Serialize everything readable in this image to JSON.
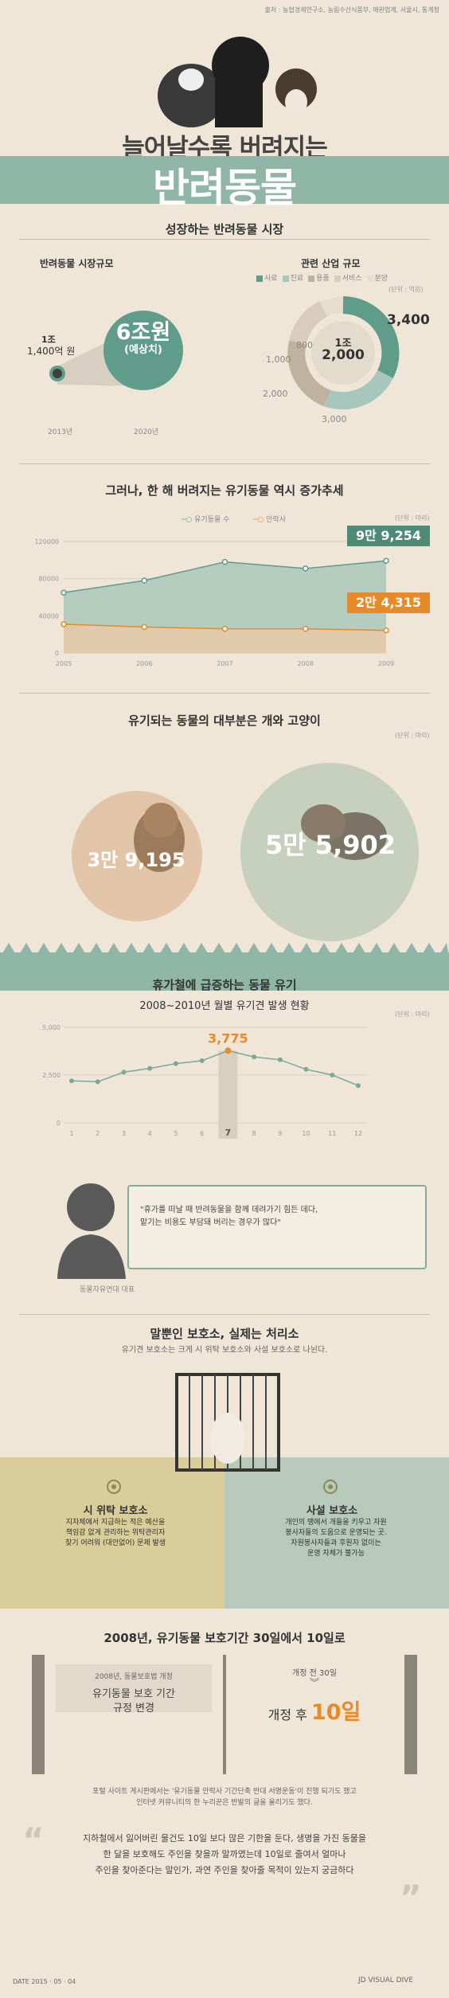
{
  "header": {
    "source": "출처 : 농협경제연구소, 농림수산식품부, 애완업계, 서울시, 통계청",
    "title": "늘어날수록 버려지는",
    "subtitle": "반려동물"
  },
  "market": {
    "section_title": "성장하는 반려동물 시장",
    "left_title": "반려동물 시장규모",
    "value_2013_top": "1조",
    "value_2013": "1,400억 원",
    "value_2020": "6조원",
    "value_2020_note": "(예상치)",
    "year_2013": "2013년",
    "year_2020": "2020년",
    "right_title": "관련 산업 규모",
    "unit": "(단위 : 억원)",
    "legend": [
      "사료",
      "진료",
      "용품",
      "서비스",
      "분양"
    ],
    "legend_colors": [
      "#5f9d8a",
      "#a7c7bd",
      "#bfb29f",
      "#d8cdbd",
      "#e8dfd2"
    ],
    "donut_center_top": "1조",
    "donut_center": "2,000",
    "donut_values": [
      "3,400",
      "3,000",
      "2,000",
      "1,000",
      "800"
    ]
  },
  "abandoned": {
    "section_title": "그러나, 한 해 버려지는 유기동물 역시 증가추세",
    "unit": "(단위 : 마리)",
    "legend": [
      "유기동물 수",
      "안락사"
    ],
    "callout_total": "9만 9,254",
    "callout_euthanasia": "2만 4,315"
  },
  "chart_data": [
    {
      "type": "area",
      "categories": [
        "2005",
        "2006",
        "2007",
        "2008",
        "2009"
      ],
      "series": [
        {
          "name": "유기동물 수",
          "values": [
            65000,
            78000,
            98000,
            91000,
            99254
          ]
        },
        {
          "name": "안락사",
          "values": [
            31000,
            28000,
            26000,
            26000,
            24315
          ]
        }
      ],
      "yticks": [
        "0",
        "40000",
        "80000",
        "120000"
      ],
      "ylim": [
        0,
        120000
      ]
    },
    {
      "type": "line",
      "title": "2008~2010년 월별 유기견 발생 현황",
      "categories": [
        "1",
        "2",
        "3",
        "4",
        "5",
        "6",
        "7",
        "8",
        "9",
        "10",
        "11",
        "12"
      ],
      "series": [
        {
          "name": "",
          "values": [
            2200,
            2150,
            2650,
            2850,
            3100,
            3250,
            3775,
            3450,
            3300,
            2800,
            2500,
            1950
          ]
        }
      ],
      "yticks": [
        "0",
        "2,500",
        "5,000"
      ],
      "ylim": [
        0,
        5000
      ],
      "peak_label": "3,775",
      "unit": "(단위 : 마리)"
    }
  ],
  "dogs_cats": {
    "section_title": "유기되는 동물의 대부분은 개와 고양이",
    "unit": "(단위 : 마리)",
    "cat_value": "3만 9,195",
    "dog_value": "5만 5,902"
  },
  "holiday": {
    "section_title": "휴가철에 급증하는 동물 유기",
    "quote_line1": "\"휴가를 떠날 때 반려동물을 함께 데려가기 힘든 데다,",
    "quote_line2": "맡기는 비용도 부담돼 버리는 경우가 많다\"",
    "speaker": "동물자유연대 대표"
  },
  "shelter": {
    "section_title": "말뿐인 보호소, 실제는 처리소",
    "section_sub": "유기견 보호소는 크게 시 위탁 보호소와 사설 보호소로 나뉜다.",
    "public_title": "시 위탁 보호소",
    "public_lines": [
      "지자체에서 지급하는 적은 예산을",
      "책임감 없게 관리하는 위탁관리자",
      "찾기 어려워 (대안없어) 문제 발생"
    ],
    "private_title": "사설 보호소",
    "private_lines": [
      "개인의 땡에서 개들을 키우고 자원",
      "봉사자들의 도움으로 운영되는 곳.",
      "자원봉사자들과 후원자 없이는",
      "운영 자체가 불가능"
    ]
  },
  "law": {
    "section_title": "2008년, 유기동물 보호기간 30일에서 10일로",
    "book_left_top": "2008년, 동물보호법 개정",
    "book_left_line1": "유기동물 보호 기간",
    "book_left_line2": "규정 변경",
    "before": "개정 전 30일",
    "after_prefix": "개정 후",
    "after_value": "10일",
    "note_line1": "포털 사이트 게시판에서는 '유기동물 안락사 기간단축 반대 서명운동'이 진행 되기도 했고",
    "note_line2": "인터넷 커뮤니티의 한 누리꾼은 반발의 글을 올리기도 했다.",
    "quote_line1": "지하철에서 잃어버린 물건도 10일 보다 많은 기한을 둔다, 생명을 가진 동물을",
    "quote_line2": "한 달을 보호해도 주인을 찾을까 말까였는데 10일로 줄여서 얼마나",
    "quote_line3": "주인을 찾아준다는 말인가, 과연 주인을 찾아줄 목적이 있는지 궁금하다"
  },
  "footer": {
    "date": "DATE 2015 · 05 · 04",
    "brand": "VISUAL DIVE"
  },
  "colors": {
    "teal": "#8fb6a6",
    "dark_teal": "#4f8a76",
    "orange": "#e78a2a",
    "bg": "#efe6d8"
  }
}
